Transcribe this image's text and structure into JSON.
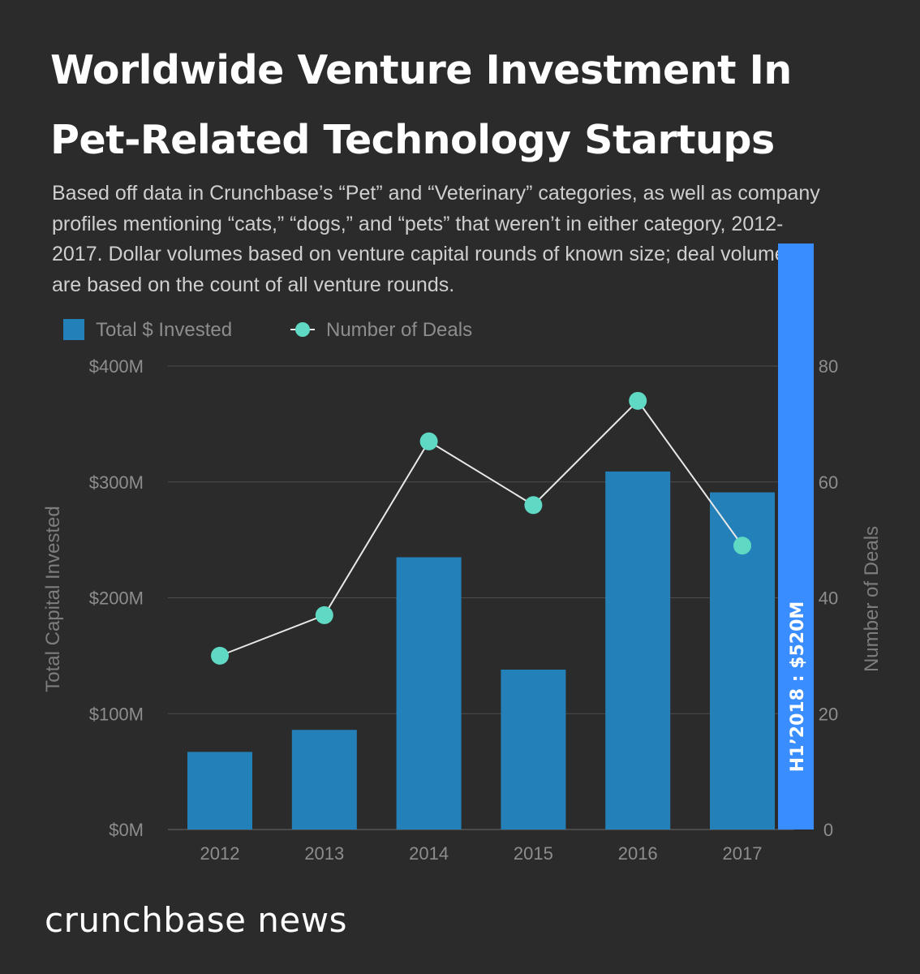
{
  "title_line1": "Worldwide Venture Investment In",
  "title_line2": "Pet-Related Technology Startups",
  "subtitle": "Based off data in Crunchbase’s “Pet” and “Veterinary” categories, as well as company profiles mentioning “cats,” “dogs,” and “pets” that weren’t in either category, 2012-2017. Dollar volumes based on venture capital rounds of known size; deal volumes are based on the count of all venture rounds.",
  "brand": "crunchbase news",
  "colors": {
    "background": "#2b2b2b",
    "bar": "#2380b8",
    "line_marker": "#5fd9c3",
    "line": "#e8e8e8",
    "highlight_bar": "#3a8dff"
  },
  "chart_data": {
    "type": "bar+line",
    "categories": [
      "2012",
      "2013",
      "2014",
      "2015",
      "2016",
      "2017"
    ],
    "series": [
      {
        "name": "Total $ Invested",
        "type": "bar",
        "axis": "left",
        "values": [
          67,
          86,
          235,
          138,
          309,
          291
        ],
        "unit": "$M"
      },
      {
        "name": "Number of Deals",
        "type": "line",
        "axis": "right",
        "values": [
          30,
          37,
          67,
          56,
          74,
          49
        ]
      }
    ],
    "ylabel_left": "Total Capital Invested",
    "ylabel_right": "Number of Deals",
    "ylim_left": [
      0,
      400
    ],
    "ylim_right": [
      0,
      80
    ],
    "yticks_left": [
      "$0M",
      "$100M",
      "$200M",
      "$300M",
      "$400M"
    ],
    "yticks_right": [
      "0",
      "20",
      "40",
      "60",
      "80"
    ],
    "legend": [
      "Total $ Invested",
      "Number of Deals"
    ],
    "grid": true,
    "annotation": {
      "label": "H1’2018 : $520M",
      "value": 520,
      "unit": "$M"
    }
  }
}
